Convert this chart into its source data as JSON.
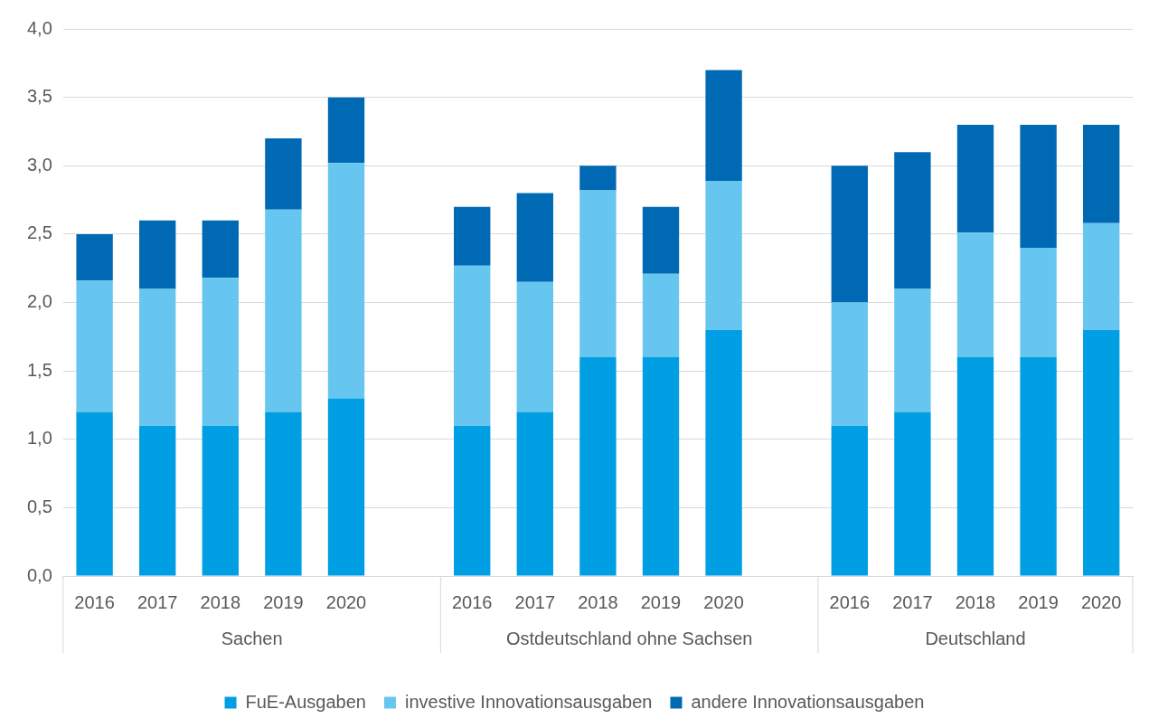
{
  "chart_data": {
    "type": "bar",
    "stacked": true,
    "categories": [
      "2016",
      "2017",
      "2018",
      "2019",
      "2020",
      null,
      "2016",
      "2017",
      "2018",
      "2019",
      "2020",
      null,
      "2016",
      "2017",
      "2018",
      "2019",
      "2020"
    ],
    "series": [
      {
        "name": "FuE-Ausgaben",
        "color": "#009fe3",
        "values": [
          1.2,
          1.1,
          1.1,
          1.2,
          1.3,
          null,
          1.1,
          1.2,
          1.6,
          1.6,
          1.8,
          null,
          1.1,
          1.2,
          1.6,
          1.6,
          1.8
        ]
      },
      {
        "name": "investive Innovationsausgaben",
        "color": "#66c6f0",
        "values": [
          0.96,
          1.0,
          1.08,
          1.48,
          1.72,
          null,
          1.17,
          0.95,
          1.22,
          0.61,
          1.09,
          null,
          0.9,
          0.9,
          0.91,
          0.8,
          0.78
        ]
      },
      {
        "name": "andere Innovationsausgaben",
        "color": "#0069b4",
        "values": [
          0.34,
          0.5,
          0.42,
          0.52,
          0.48,
          null,
          0.43,
          0.65,
          0.18,
          0.49,
          0.81,
          null,
          1.0,
          1.0,
          0.79,
          0.9,
          0.72
        ]
      }
    ],
    "annotations": [
      "Sachen",
      "Ostdeutschland ohne Sachsen",
      "Deutschland"
    ],
    "ylim": [
      0,
      4
    ],
    "yticks": [
      {
        "value": 0,
        "label": "0,0"
      },
      {
        "value": 0.5,
        "label": "0,5"
      },
      {
        "value": 1,
        "label": "1,0"
      },
      {
        "value": 1.5,
        "label": "1,5"
      },
      {
        "value": 2,
        "label": "2,0"
      },
      {
        "value": 2.5,
        "label": "2,5"
      },
      {
        "value": 3,
        "label": "3,0"
      },
      {
        "value": 3.5,
        "label": "3,5"
      },
      {
        "value": 4,
        "label": "4,0"
      }
    ],
    "grid": "y",
    "legend": "bottom"
  }
}
